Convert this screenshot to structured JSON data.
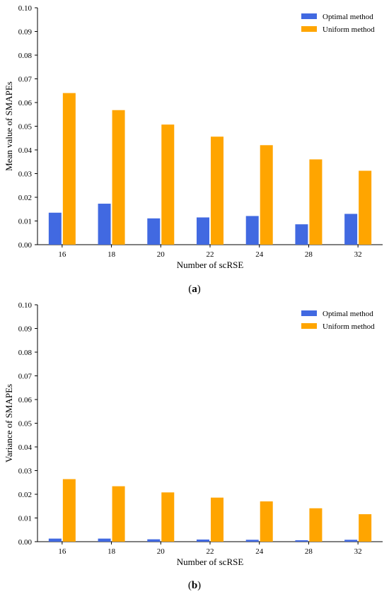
{
  "colors": {
    "optimal": "#4169e1",
    "uniform": "#ffa500"
  },
  "chart_data": [
    {
      "type": "bar",
      "caption": {
        "open": "(",
        "letter": "a",
        "close": ")"
      },
      "xlabel": "Number of scRSE",
      "ylabel": "Mean value of SMAPEs",
      "categories": [
        "16",
        "18",
        "20",
        "22",
        "24",
        "28",
        "32"
      ],
      "ylim": [
        0,
        0.1
      ],
      "yticks": [
        "0.00",
        "0.01",
        "0.02",
        "0.03",
        "0.04",
        "0.05",
        "0.06",
        "0.07",
        "0.08",
        "0.09",
        "0.10"
      ],
      "legend_position": "top-right",
      "series": [
        {
          "name": "Optimal method",
          "color": "#4169e1",
          "values": [
            0.0135,
            0.0173,
            0.0111,
            0.0115,
            0.0121,
            0.0086,
            0.013
          ]
        },
        {
          "name": "Uniform method",
          "color": "#ffa500",
          "values": [
            0.064,
            0.0568,
            0.0507,
            0.0456,
            0.042,
            0.036,
            0.0312
          ]
        }
      ]
    },
    {
      "type": "bar",
      "caption": {
        "open": "(",
        "letter": "b",
        "close": ")"
      },
      "xlabel": "Number of scRSE",
      "ylabel": "Variance of SMAPEs",
      "categories": [
        "16",
        "18",
        "20",
        "22",
        "24",
        "28",
        "32"
      ],
      "ylim": [
        0,
        0.1
      ],
      "yticks": [
        "0.00",
        "0.01",
        "0.02",
        "0.03",
        "0.04",
        "0.05",
        "0.06",
        "0.07",
        "0.08",
        "0.09",
        "0.10"
      ],
      "legend_position": "top-right",
      "series": [
        {
          "name": "Optimal method",
          "color": "#4169e1",
          "values": [
            0.0013,
            0.0013,
            0.001,
            0.0009,
            0.0008,
            0.0006,
            0.0008
          ]
        },
        {
          "name": "Uniform method",
          "color": "#ffa500",
          "values": [
            0.0264,
            0.0234,
            0.0208,
            0.0186,
            0.017,
            0.0141,
            0.0116
          ]
        }
      ]
    }
  ]
}
